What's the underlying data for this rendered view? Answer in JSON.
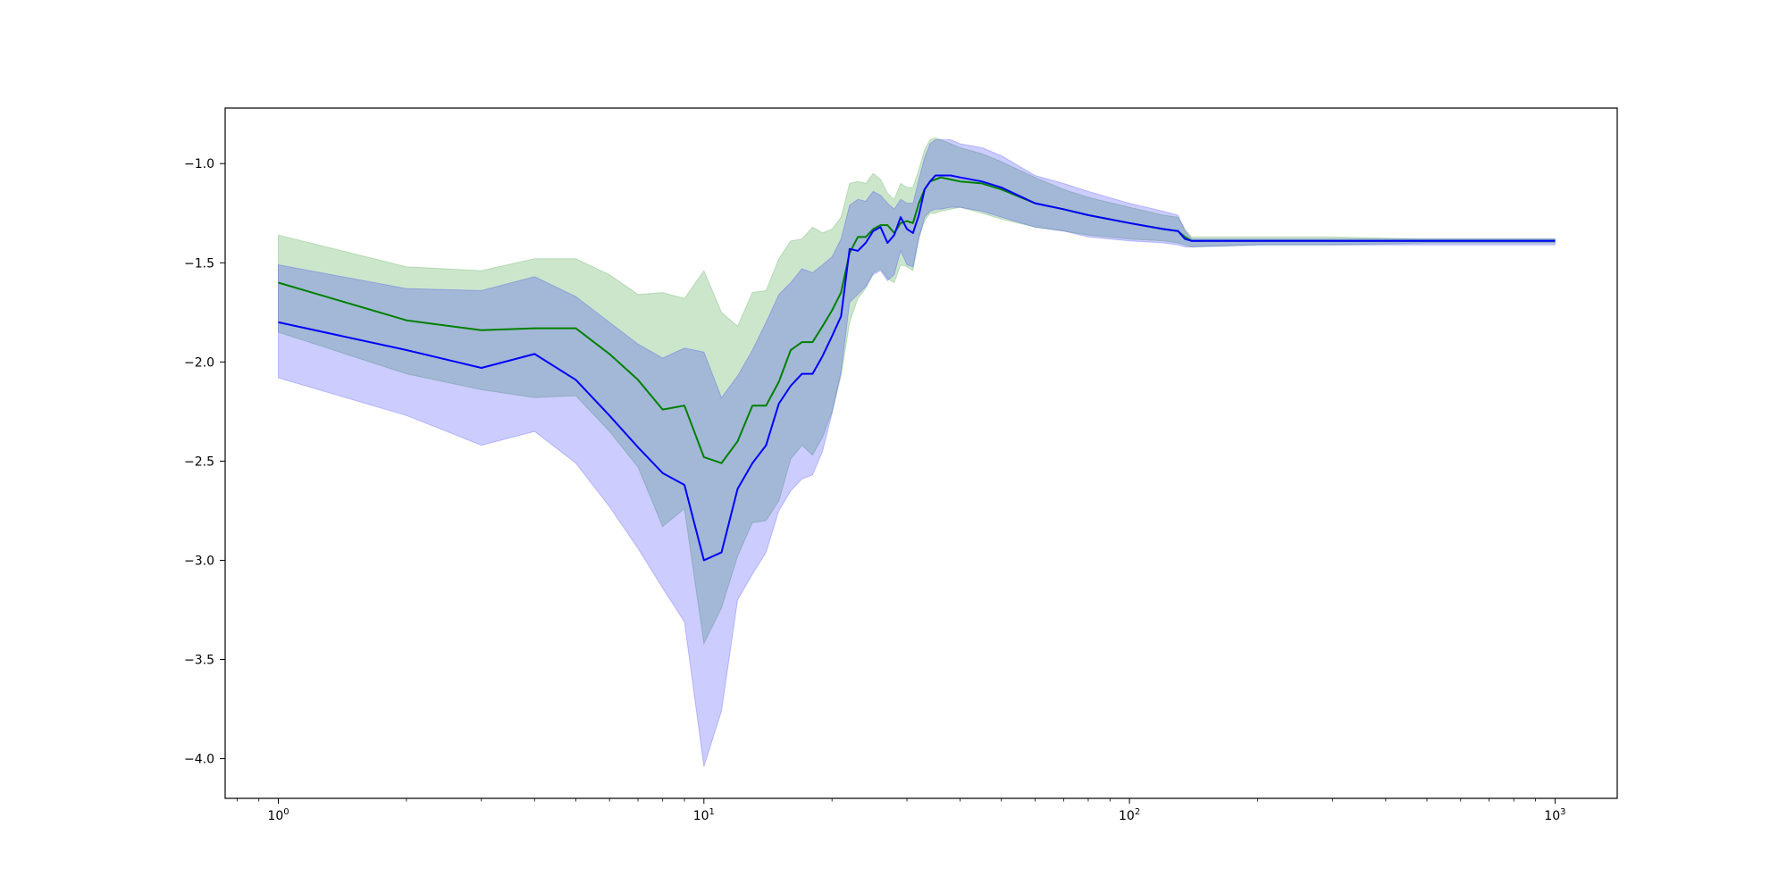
{
  "chart_data": {
    "type": "area",
    "title": "",
    "xlabel": "",
    "ylabel": "",
    "xscale": "log",
    "xlim": [
      0.75,
      1400
    ],
    "ylim": [
      -4.2,
      -0.72
    ],
    "grid": false,
    "legend": "none",
    "x_ticks": [
      {
        "value": 1,
        "base": "10",
        "exp": "0"
      },
      {
        "value": 10,
        "base": "10",
        "exp": "1"
      },
      {
        "value": 100,
        "base": "10",
        "exp": "2"
      },
      {
        "value": 1000,
        "base": "10",
        "exp": "3"
      }
    ],
    "y_ticks": [
      {
        "value": -1.0,
        "label": "−1.0"
      },
      {
        "value": -1.5,
        "label": "−1.5"
      },
      {
        "value": -2.0,
        "label": "−2.0"
      },
      {
        "value": -2.5,
        "label": "−2.5"
      },
      {
        "value": -3.0,
        "label": "−3.0"
      },
      {
        "value": -3.5,
        "label": "−3.5"
      },
      {
        "value": -4.0,
        "label": "−4.0"
      }
    ],
    "series": [
      {
        "color": "#008000",
        "band_color": "#008000",
        "band_opacity": 0.2,
        "x": [
          1,
          2,
          3,
          4,
          5,
          6,
          7,
          8,
          9,
          10,
          11,
          12,
          13,
          14,
          15,
          16,
          17,
          18,
          19,
          20,
          21,
          22,
          23,
          24,
          25,
          26,
          27,
          28,
          29,
          30,
          31,
          32,
          33,
          34,
          35,
          36,
          38,
          40,
          45,
          50,
          60,
          70,
          80,
          100,
          120,
          130,
          135,
          140,
          200,
          300,
          500,
          1000
        ],
        "y": [
          -1.6,
          -1.79,
          -1.84,
          -1.83,
          -1.83,
          -1.96,
          -2.09,
          -2.24,
          -2.22,
          -2.48,
          -2.51,
          -2.4,
          -2.22,
          -2.22,
          -2.1,
          -1.94,
          -1.9,
          -1.9,
          -1.82,
          -1.74,
          -1.65,
          -1.45,
          -1.37,
          -1.37,
          -1.33,
          -1.31,
          -1.31,
          -1.35,
          -1.3,
          -1.29,
          -1.3,
          -1.2,
          -1.13,
          -1.09,
          -1.08,
          -1.07,
          -1.08,
          -1.09,
          -1.1,
          -1.13,
          -1.2,
          -1.23,
          -1.26,
          -1.3,
          -1.33,
          -1.34,
          -1.37,
          -1.39,
          -1.39,
          -1.39,
          -1.39,
          -1.39
        ],
        "upper": [
          -1.36,
          -1.52,
          -1.54,
          -1.48,
          -1.48,
          -1.56,
          -1.66,
          -1.65,
          -1.68,
          -1.54,
          -1.75,
          -1.82,
          -1.65,
          -1.64,
          -1.48,
          -1.39,
          -1.38,
          -1.32,
          -1.35,
          -1.33,
          -1.27,
          -1.1,
          -1.09,
          -1.1,
          -1.05,
          -1.08,
          -1.15,
          -1.18,
          -1.1,
          -1.12,
          -1.12,
          -1.03,
          -0.93,
          -0.88,
          -0.87,
          -0.88,
          -0.9,
          -0.92,
          -0.95,
          -0.99,
          -1.07,
          -1.13,
          -1.17,
          -1.22,
          -1.26,
          -1.27,
          -1.33,
          -1.37,
          -1.37,
          -1.37,
          -1.38,
          -1.38
        ],
        "lower": [
          -1.85,
          -2.06,
          -2.14,
          -2.18,
          -2.17,
          -2.35,
          -2.53,
          -2.83,
          -2.74,
          -3.42,
          -3.24,
          -2.98,
          -2.81,
          -2.8,
          -2.7,
          -2.49,
          -2.42,
          -2.47,
          -2.38,
          -2.25,
          -2.07,
          -1.8,
          -1.68,
          -1.63,
          -1.55,
          -1.53,
          -1.58,
          -1.6,
          -1.51,
          -1.52,
          -1.54,
          -1.37,
          -1.29,
          -1.25,
          -1.25,
          -1.24,
          -1.23,
          -1.22,
          -1.25,
          -1.28,
          -1.32,
          -1.34,
          -1.36,
          -1.38,
          -1.39,
          -1.4,
          -1.41,
          -1.42,
          -1.41,
          -1.41,
          -1.4,
          -1.4
        ]
      },
      {
        "color": "#0000ff",
        "band_color": "#0000ff",
        "band_opacity": 0.2,
        "x": [
          1,
          2,
          3,
          4,
          5,
          6,
          7,
          8,
          9,
          10,
          11,
          12,
          13,
          14,
          15,
          16,
          17,
          18,
          19,
          20,
          21,
          22,
          23,
          24,
          25,
          26,
          27,
          28,
          29,
          30,
          31,
          32,
          33,
          34,
          35,
          36,
          38,
          40,
          45,
          50,
          60,
          70,
          80,
          100,
          120,
          130,
          135,
          140,
          200,
          300,
          500,
          1000
        ],
        "y": [
          -1.8,
          -1.94,
          -2.03,
          -1.96,
          -2.09,
          -2.27,
          -2.43,
          -2.56,
          -2.62,
          -3.0,
          -2.96,
          -2.64,
          -2.51,
          -2.42,
          -2.21,
          -2.12,
          -2.06,
          -2.06,
          -1.97,
          -1.87,
          -1.77,
          -1.43,
          -1.44,
          -1.4,
          -1.34,
          -1.32,
          -1.4,
          -1.36,
          -1.27,
          -1.33,
          -1.35,
          -1.26,
          -1.13,
          -1.09,
          -1.06,
          -1.06,
          -1.06,
          -1.07,
          -1.09,
          -1.12,
          -1.2,
          -1.23,
          -1.26,
          -1.3,
          -1.33,
          -1.34,
          -1.38,
          -1.39,
          -1.39,
          -1.39,
          -1.39,
          -1.39
        ],
        "upper": [
          -1.51,
          -1.63,
          -1.64,
          -1.57,
          -1.67,
          -1.8,
          -1.91,
          -1.98,
          -1.93,
          -1.95,
          -2.18,
          -2.07,
          -1.94,
          -1.8,
          -1.66,
          -1.6,
          -1.53,
          -1.55,
          -1.51,
          -1.47,
          -1.38,
          -1.21,
          -1.18,
          -1.19,
          -1.14,
          -1.16,
          -1.2,
          -1.23,
          -1.18,
          -1.2,
          -1.2,
          -1.08,
          -0.97,
          -0.9,
          -0.88,
          -0.88,
          -0.88,
          -0.9,
          -0.92,
          -0.96,
          -1.06,
          -1.1,
          -1.14,
          -1.2,
          -1.24,
          -1.26,
          -1.34,
          -1.38,
          -1.38,
          -1.38,
          -1.38,
          -1.38
        ],
        "lower": [
          -2.08,
          -2.27,
          -2.42,
          -2.35,
          -2.51,
          -2.73,
          -2.94,
          -3.14,
          -3.31,
          -4.04,
          -3.76,
          -3.2,
          -3.07,
          -2.96,
          -2.75,
          -2.65,
          -2.59,
          -2.57,
          -2.45,
          -2.26,
          -2.05,
          -1.7,
          -1.66,
          -1.62,
          -1.56,
          -1.54,
          -1.59,
          -1.56,
          -1.44,
          -1.51,
          -1.52,
          -1.38,
          -1.27,
          -1.24,
          -1.23,
          -1.23,
          -1.22,
          -1.22,
          -1.24,
          -1.27,
          -1.32,
          -1.34,
          -1.37,
          -1.39,
          -1.4,
          -1.41,
          -1.42,
          -1.42,
          -1.41,
          -1.41,
          -1.41,
          -1.41
        ]
      }
    ]
  }
}
